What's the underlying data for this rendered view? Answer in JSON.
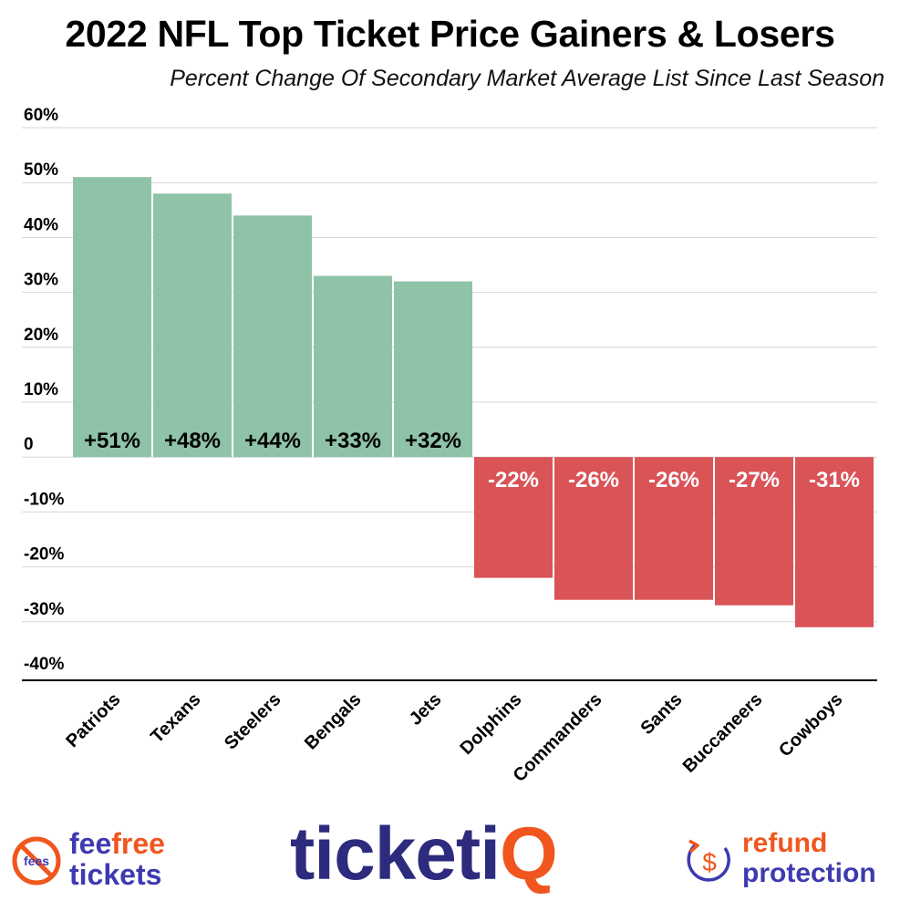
{
  "header": {
    "title": "2022 NFL Top Ticket Price Gainers & Losers",
    "subtitle": "Percent Change Of Secondary Market Average List Since Last Season"
  },
  "chart_data": {
    "type": "bar",
    "title": "2022 NFL Top Ticket Price Gainers & Losers",
    "subtitle": "Percent Change Of Secondary Market Average List Since Last Season",
    "xlabel": "",
    "ylabel": "",
    "categories": [
      "Patriots",
      "Texans",
      "Steelers",
      "Bengals",
      "Jets",
      "Dolphins",
      "Commanders",
      "Sants",
      "Buccaneers",
      "Cowboys"
    ],
    "values": [
      51,
      48,
      44,
      33,
      32,
      -22,
      -26,
      -26,
      -27,
      -31
    ],
    "data_labels": [
      "+51%",
      "+48%",
      "+44%",
      "+33%",
      "+32%",
      "-22%",
      "-26%",
      "-26%",
      "-27%",
      "-31%"
    ],
    "ylim": [
      -40,
      60
    ],
    "yticks": [
      60,
      50,
      40,
      30,
      20,
      10,
      0,
      -10,
      -20,
      -30,
      -40
    ],
    "ytick_labels": [
      "60%",
      "50%",
      "40%",
      "30%",
      "20%",
      "10%",
      "0",
      "-10%",
      "-20%",
      "-30%",
      "-40%"
    ],
    "grid": true,
    "legend": "none",
    "colors": {
      "positive": "#8fc3a8",
      "negative": "#d95357"
    }
  },
  "footer": {
    "feefree": {
      "icon_text": "fees",
      "word1": "fee",
      "word2": "free",
      "word3": "tickets"
    },
    "ticketiq": {
      "main": "ticketi",
      "accent": "Q"
    },
    "refund": {
      "icon_symbol": "$",
      "word1": "refund",
      "word2": "protection"
    },
    "colors": {
      "navy": "#2d2b7e",
      "orange": "#f0561d",
      "purple": "#3e3ab0"
    }
  }
}
